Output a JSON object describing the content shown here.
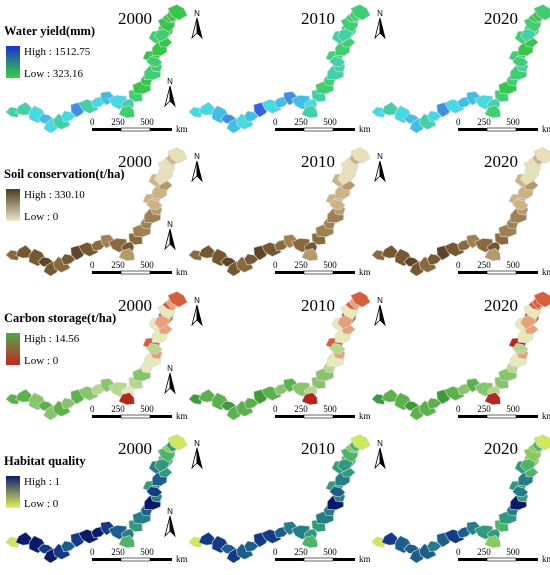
{
  "rows": [
    {
      "title": "Water yield(mm)",
      "high_label": "High : 1512.75",
      "low_label": "Low : 323.16",
      "colors": [
        "#1f3fd1",
        "#2f63e3",
        "#3f8fe6",
        "#3fbfe6",
        "#45d9e4",
        "#41d0a8",
        "#3fcf72",
        "#35c64a"
      ],
      "legend_top": "#1f2fd0",
      "legend_bottom": "#36d23c",
      "year_map_patterns": [
        [
          5,
          5,
          4,
          3,
          4,
          5,
          4,
          2,
          5,
          4,
          3,
          4,
          5,
          6,
          7,
          7,
          6,
          6,
          6,
          7,
          7,
          7,
          6,
          7,
          6,
          6,
          7,
          7,
          7,
          7
        ],
        [
          4,
          4,
          3,
          2,
          3,
          4,
          3,
          1,
          4,
          3,
          2,
          3,
          4,
          5,
          6,
          6,
          5,
          5,
          5,
          6,
          6,
          6,
          5,
          6,
          5,
          5,
          6,
          6,
          6,
          6
        ],
        [
          4,
          5,
          4,
          3,
          3,
          5,
          4,
          2,
          4,
          3,
          3,
          4,
          5,
          6,
          7,
          6,
          6,
          6,
          5,
          6,
          7,
          7,
          6,
          6,
          6,
          5,
          6,
          7,
          7,
          6
        ]
      ]
    },
    {
      "title": "Soil conservation(t/ha)",
      "high_label": "High : 330.10",
      "low_label": "Low : 0",
      "colors": [
        "#4a3620",
        "#5e4527",
        "#74582f",
        "#8a6a3d",
        "#a0804f",
        "#b69968",
        "#ccb386",
        "#e9dfb9"
      ],
      "legend_top": "#4a3a22",
      "legend_bottom": "#efe7c8",
      "year_map_patterns": [
        [
          3,
          2,
          2,
          1,
          2,
          3,
          2,
          1,
          2,
          3,
          4,
          3,
          2,
          3,
          4,
          4,
          5,
          4,
          5,
          6,
          6,
          5,
          6,
          7,
          6,
          7,
          7,
          7,
          6,
          7
        ],
        [
          3,
          2,
          2,
          1,
          2,
          3,
          2,
          1,
          2,
          3,
          4,
          3,
          2,
          3,
          4,
          4,
          5,
          4,
          5,
          6,
          6,
          5,
          6,
          7,
          6,
          7,
          7,
          7,
          6,
          7
        ],
        [
          3,
          2,
          2,
          1,
          2,
          3,
          2,
          1,
          2,
          3,
          4,
          3,
          2,
          3,
          4,
          4,
          5,
          4,
          5,
          6,
          6,
          5,
          6,
          7,
          6,
          7,
          7,
          7,
          6,
          7
        ]
      ]
    },
    {
      "title": "Carbon storage(t/ha)",
      "high_label": "High : 14.56",
      "low_label": "Low : 0",
      "colors": [
        "#3e9a3a",
        "#5bb24a",
        "#87c56a",
        "#b6d88e",
        "#e8e8b8",
        "#e7a07a",
        "#d6603e",
        "#b5261f"
      ],
      "legend_top": "#4fa84a",
      "legend_bottom": "#c0281f",
      "year_map_patterns": [
        [
          1,
          1,
          2,
          1,
          2,
          1,
          2,
          1,
          2,
          3,
          2,
          3,
          4,
          3,
          2,
          4,
          7,
          4,
          5,
          6,
          4,
          5,
          4,
          6,
          3,
          5,
          4,
          6,
          5,
          6
        ],
        [
          0,
          1,
          1,
          0,
          1,
          1,
          1,
          0,
          1,
          2,
          1,
          2,
          3,
          2,
          2,
          3,
          7,
          4,
          5,
          6,
          4,
          5,
          4,
          6,
          3,
          5,
          4,
          6,
          5,
          6
        ],
        [
          0,
          1,
          1,
          0,
          1,
          1,
          1,
          0,
          1,
          2,
          1,
          2,
          3,
          2,
          2,
          3,
          7,
          4,
          5,
          7,
          4,
          5,
          4,
          6,
          3,
          5,
          4,
          6,
          6,
          6
        ]
      ]
    },
    {
      "title": "Habitat quality",
      "high_label": "High : 1",
      "low_label": "Low : 0",
      "colors": [
        "#0a1a6b",
        "#123a86",
        "#1a5e8e",
        "#247e8a",
        "#2f9a7c",
        "#4cb56a",
        "#86cc5c",
        "#cde85a"
      ],
      "legend_top": "#0b1d73",
      "legend_bottom": "#e5f25a",
      "year_map_patterns": [
        [
          7,
          0,
          0,
          1,
          0,
          1,
          2,
          1,
          0,
          0,
          1,
          2,
          3,
          4,
          3,
          2,
          5,
          0,
          3,
          4,
          2,
          4,
          3,
          5,
          1,
          4,
          5,
          6,
          4,
          7
        ],
        [
          7,
          1,
          1,
          2,
          1,
          2,
          2,
          1,
          1,
          2,
          3,
          3,
          4,
          4,
          3,
          3,
          5,
          0,
          3,
          4,
          3,
          4,
          4,
          5,
          2,
          4,
          5,
          6,
          5,
          7
        ],
        [
          7,
          1,
          2,
          2,
          2,
          2,
          3,
          2,
          1,
          2,
          3,
          4,
          4,
          5,
          4,
          3,
          6,
          0,
          4,
          4,
          3,
          5,
          4,
          6,
          3,
          5,
          6,
          6,
          5,
          7
        ]
      ]
    }
  ],
  "years": [
    "2000",
    "2010",
    "2020"
  ],
  "north_label": "N",
  "scale_ticks": [
    "0",
    "250",
    "500"
  ],
  "scale_unit": "km"
}
